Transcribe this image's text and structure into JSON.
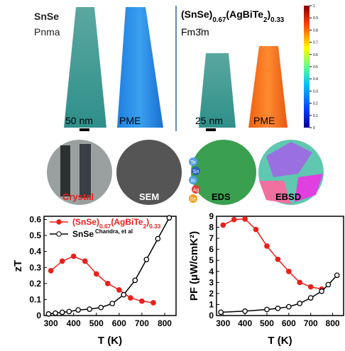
{
  "panels": {
    "left": {
      "material": "SnSe",
      "space_group": "Pnma",
      "scale": "50 nm",
      "label": "PME"
    },
    "right": {
      "formula": "(SnSe)0.67(AgBiTe2)0.33",
      "space_group": "Fm3̄m",
      "scale": "25 nm",
      "label": "PME"
    },
    "colorbar": {
      "ticks": [
        0,
        0.1,
        0.2,
        0.3,
        0.4,
        0.5,
        0.6,
        0.7,
        0.8,
        0.9,
        1
      ]
    }
  },
  "images": [
    {
      "label": "Crystal"
    },
    {
      "label": "SEM"
    },
    {
      "label": "EDS"
    },
    {
      "label": "EBSD"
    }
  ],
  "eds_elements": [
    "Te",
    "Sn",
    "Bi",
    "Ag",
    "Se"
  ],
  "chart_data": [
    {
      "type": "line",
      "ylabel": "zT",
      "xlabel": "T (K)",
      "xlim": [
        270,
        850
      ],
      "xticks": [
        300,
        400,
        500,
        600,
        700,
        800
      ],
      "ylim": [
        0,
        0.62
      ],
      "yticks": [
        0,
        0.1,
        0.2,
        0.3,
        0.4,
        0.5,
        0.6
      ],
      "series": [
        {
          "name": "(SnSe)0.67(AgBiTe2)0.33",
          "color": "#e8211d",
          "marker": "filled",
          "x": [
            300,
            350,
            400,
            450,
            500,
            550,
            600,
            650,
            700,
            750
          ],
          "values": [
            0.28,
            0.34,
            0.37,
            0.34,
            0.26,
            0.2,
            0.16,
            0.11,
            0.09,
            0.08
          ]
        },
        {
          "name": "SnSe",
          "note": "Chandra, et al",
          "color": "#000000",
          "marker": "open",
          "x": [
            290,
            320,
            350,
            380,
            420,
            470,
            520,
            570,
            620,
            670,
            720,
            770,
            820
          ],
          "values": [
            0.01,
            0.015,
            0.02,
            0.025,
            0.035,
            0.04,
            0.05,
            0.075,
            0.13,
            0.22,
            0.35,
            0.48,
            0.61
          ]
        }
      ]
    },
    {
      "type": "line",
      "ylabel": "PF (μW/cmK²)",
      "xlabel": "T (K)",
      "xlim": [
        270,
        850
      ],
      "xticks": [
        300,
        400,
        500,
        600,
        700,
        800
      ],
      "ylim": [
        0,
        9
      ],
      "yticks": [
        0,
        1,
        2,
        3,
        4,
        5,
        6,
        7,
        8,
        9
      ],
      "series": [
        {
          "color": "#e8211d",
          "marker": "filled",
          "x": [
            300,
            350,
            400,
            450,
            500,
            550,
            600,
            650,
            700,
            750
          ],
          "values": [
            8.2,
            8.7,
            8.75,
            7.8,
            6.3,
            5.1,
            4.0,
            3.0,
            2.6,
            2.4
          ]
        },
        {
          "color": "#000000",
          "marker": "open",
          "x": [
            290,
            400,
            500,
            550,
            600,
            650,
            700,
            750,
            780,
            820
          ],
          "values": [
            0.3,
            0.4,
            0.55,
            0.65,
            0.8,
            1.1,
            1.6,
            2.2,
            2.8,
            3.65
          ]
        }
      ]
    }
  ]
}
